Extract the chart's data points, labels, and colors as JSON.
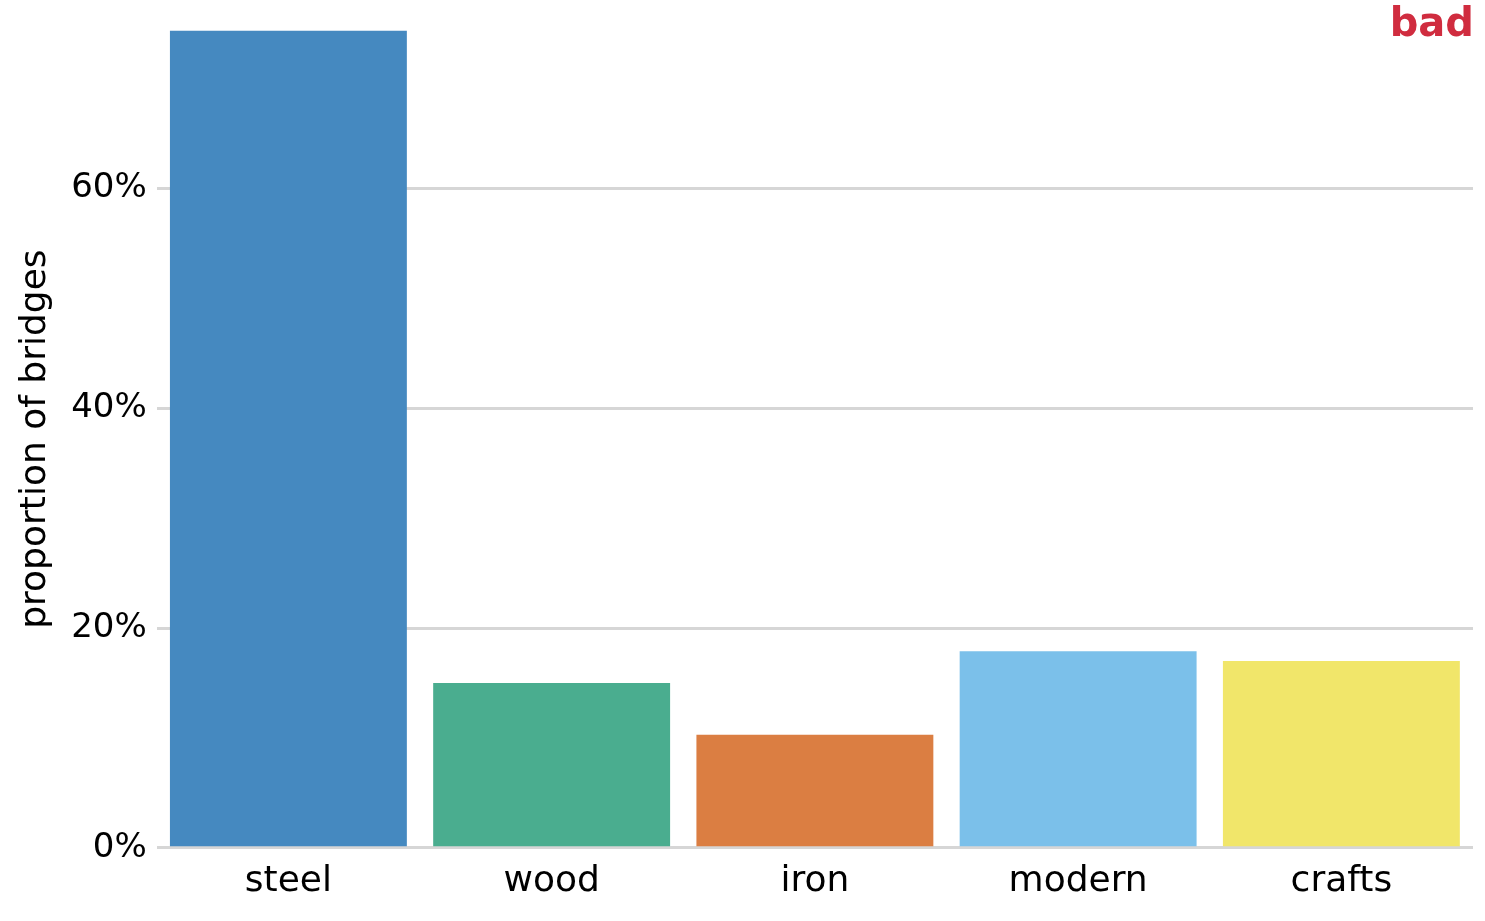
{
  "chart_data": {
    "type": "bar",
    "ylabel": "proportion of bridges",
    "categories": [
      "steel",
      "wood",
      "iron",
      "modern",
      "crafts"
    ],
    "values": [
      74.4,
      15.0,
      10.3,
      17.9,
      17.0
    ],
    "colors": [
      "#4589c0",
      "#4aad8f",
      "#db7e42",
      "#7bc0ea",
      "#f1e66a"
    ],
    "ylim": [
      0,
      74.4
    ],
    "yticks": [
      {
        "value": 0,
        "label": "0%"
      },
      {
        "value": 20,
        "label": "20%"
      },
      {
        "value": 40,
        "label": "40%"
      },
      {
        "value": 60,
        "label": "60%"
      }
    ],
    "grid": "y",
    "annotations": [
      "bad"
    ]
  }
}
